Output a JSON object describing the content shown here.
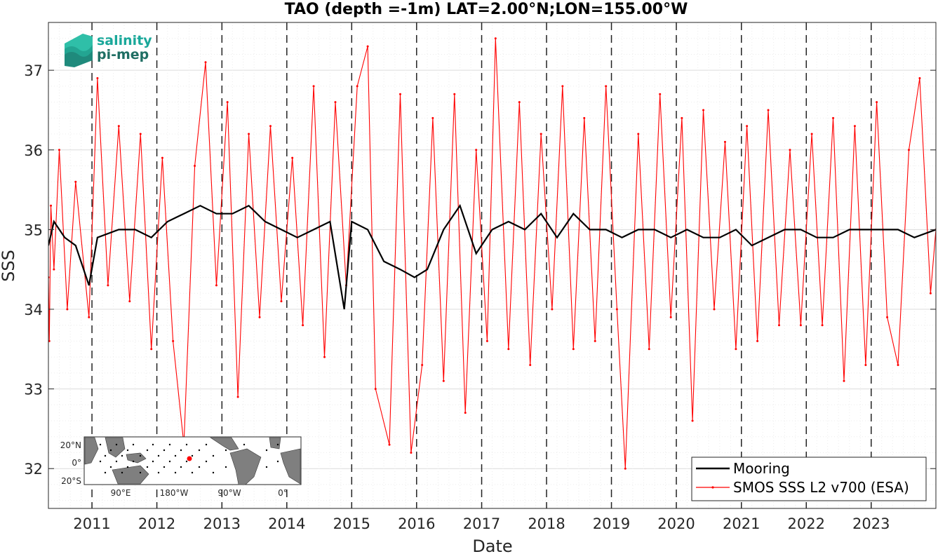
{
  "logo": {
    "line1": "salinity",
    "line2": "pi-mep",
    "color1": "#1aa89a",
    "color2": "#1f6e63"
  },
  "inset_map": {
    "lat_labels": [
      "20°N",
      "0°",
      "20°S"
    ],
    "lon_labels": [
      "90°E",
      "180°W",
      "90°W",
      "0°"
    ],
    "land_color": "#7f7f7f",
    "station_marker_color": "#ff0000"
  },
  "legend": {
    "position": "bottom-right"
  },
  "chart_data": {
    "type": "line",
    "title": "TAO (depth =-1m) LAT=2.00°N;LON=155.00°W",
    "xlabel": "Date",
    "ylabel": "SSS",
    "xlim": [
      "2010-05-01",
      "2023-12-31"
    ],
    "ylim": [
      31.5,
      37.6
    ],
    "x_ticks": [
      "2011",
      "2012",
      "2013",
      "2014",
      "2015",
      "2016",
      "2017",
      "2018",
      "2019",
      "2020",
      "2021",
      "2022",
      "2023"
    ],
    "y_ticks": [
      32,
      33,
      34,
      35,
      36,
      37
    ],
    "grid": true,
    "minor_grid": true,
    "year_boundary_lines": "dashed",
    "series": [
      {
        "name": "Mooring",
        "color": "#000000",
        "points": [
          [
            "2010-05-01",
            34.8
          ],
          [
            "2010-06-01",
            35.1
          ],
          [
            "2010-08-01",
            34.9
          ],
          [
            "2010-10-01",
            34.8
          ],
          [
            "2010-12-15",
            34.3
          ],
          [
            "2011-02-01",
            34.9
          ],
          [
            "2011-06-01",
            35.0
          ],
          [
            "2011-09-01",
            35.0
          ],
          [
            "2011-12-01",
            34.9
          ],
          [
            "2012-03-01",
            35.1
          ],
          [
            "2012-06-01",
            35.2
          ],
          [
            "2012-09-01",
            35.3
          ],
          [
            "2012-12-01",
            35.2
          ],
          [
            "2013-03-01",
            35.2
          ],
          [
            "2013-06-01",
            35.3
          ],
          [
            "2013-09-01",
            35.1
          ],
          [
            "2013-12-01",
            35.0
          ],
          [
            "2014-03-01",
            34.9
          ],
          [
            "2014-06-01",
            35.0
          ],
          [
            "2014-09-01",
            35.1
          ],
          [
            "2014-11-20",
            34.0
          ],
          [
            "2015-01-01",
            35.1
          ],
          [
            "2015-04-01",
            35.0
          ],
          [
            "2015-07-01",
            34.6
          ],
          [
            "2015-10-01",
            34.5
          ],
          [
            "2015-12-20",
            34.4
          ],
          [
            "2016-03-01",
            34.5
          ],
          [
            "2016-06-01",
            35.0
          ],
          [
            "2016-09-01",
            35.3
          ],
          [
            "2016-12-01",
            34.7
          ],
          [
            "2017-03-01",
            35.0
          ],
          [
            "2017-06-01",
            35.1
          ],
          [
            "2017-09-01",
            35.0
          ],
          [
            "2017-12-01",
            35.2
          ],
          [
            "2018-03-01",
            34.9
          ],
          [
            "2018-06-01",
            35.2
          ],
          [
            "2018-09-01",
            35.0
          ],
          [
            "2018-12-01",
            35.0
          ],
          [
            "2019-03-01",
            34.9
          ],
          [
            "2019-06-01",
            35.0
          ],
          [
            "2019-09-01",
            35.0
          ],
          [
            "2019-12-01",
            34.9
          ],
          [
            "2020-03-01",
            35.0
          ],
          [
            "2020-06-01",
            34.9
          ],
          [
            "2020-09-01",
            34.9
          ],
          [
            "2020-12-01",
            35.0
          ],
          [
            "2021-03-01",
            34.8
          ],
          [
            "2021-06-01",
            34.9
          ],
          [
            "2021-09-01",
            35.0
          ],
          [
            "2021-12-01",
            35.0
          ],
          [
            "2022-03-01",
            34.9
          ],
          [
            "2022-06-01",
            34.9
          ],
          [
            "2022-09-01",
            35.0
          ],
          [
            "2022-12-01",
            35.0
          ],
          [
            "2023-03-01",
            35.0
          ],
          [
            "2023-06-01",
            35.0
          ],
          [
            "2023-09-01",
            34.9
          ],
          [
            "2023-12-31",
            35.0
          ]
        ]
      },
      {
        "name": "SMOS SSS L2 v700 (ESA)",
        "color": "#ff0000",
        "points": [
          [
            "2010-05-01",
            34.4
          ],
          [
            "2010-05-06",
            33.6
          ],
          [
            "2010-05-15",
            35.3
          ],
          [
            "2010-06-01",
            34.5
          ],
          [
            "2010-07-01",
            36.0
          ],
          [
            "2010-08-15",
            34.0
          ],
          [
            "2010-10-01",
            35.6
          ],
          [
            "2010-12-15",
            33.9
          ],
          [
            "2011-02-01",
            36.9
          ],
          [
            "2011-04-01",
            34.3
          ],
          [
            "2011-06-01",
            36.3
          ],
          [
            "2011-08-01",
            34.1
          ],
          [
            "2011-10-01",
            36.2
          ],
          [
            "2011-12-01",
            33.5
          ],
          [
            "2012-02-01",
            35.9
          ],
          [
            "2012-04-01",
            33.6
          ],
          [
            "2012-06-01",
            32.3
          ],
          [
            "2012-08-01",
            35.8
          ],
          [
            "2012-10-01",
            37.1
          ],
          [
            "2012-12-01",
            34.3
          ],
          [
            "2013-02-01",
            36.6
          ],
          [
            "2013-04-01",
            32.9
          ],
          [
            "2013-06-01",
            36.2
          ],
          [
            "2013-08-01",
            33.9
          ],
          [
            "2013-10-01",
            36.3
          ],
          [
            "2013-12-01",
            34.1
          ],
          [
            "2014-02-01",
            35.9
          ],
          [
            "2014-04-01",
            33.8
          ],
          [
            "2014-06-01",
            36.8
          ],
          [
            "2014-08-01",
            33.4
          ],
          [
            "2014-10-01",
            36.6
          ],
          [
            "2014-12-01",
            34.3
          ],
          [
            "2015-02-01",
            36.8
          ],
          [
            "2015-04-01",
            37.3
          ],
          [
            "2015-05-15",
            33.0
          ],
          [
            "2015-08-01",
            32.3
          ],
          [
            "2015-10-01",
            36.7
          ],
          [
            "2015-12-01",
            32.2
          ],
          [
            "2016-02-01",
            33.3
          ],
          [
            "2016-04-01",
            36.4
          ],
          [
            "2016-06-01",
            33.1
          ],
          [
            "2016-08-01",
            36.7
          ],
          [
            "2016-10-01",
            32.7
          ],
          [
            "2016-12-01",
            36.0
          ],
          [
            "2017-02-01",
            33.6
          ],
          [
            "2017-03-20",
            37.4
          ],
          [
            "2017-06-01",
            33.5
          ],
          [
            "2017-08-01",
            36.6
          ],
          [
            "2017-10-01",
            33.3
          ],
          [
            "2017-12-01",
            36.2
          ],
          [
            "2018-02-01",
            34.0
          ],
          [
            "2018-04-01",
            36.8
          ],
          [
            "2018-06-01",
            33.5
          ],
          [
            "2018-08-01",
            36.4
          ],
          [
            "2018-10-01",
            33.6
          ],
          [
            "2018-12-01",
            36.8
          ],
          [
            "2019-02-01",
            34.0
          ],
          [
            "2019-03-20",
            32.0
          ],
          [
            "2019-06-01",
            36.2
          ],
          [
            "2019-08-01",
            33.5
          ],
          [
            "2019-10-01",
            36.7
          ],
          [
            "2019-12-01",
            33.9
          ],
          [
            "2020-02-01",
            36.4
          ],
          [
            "2020-04-01",
            32.6
          ],
          [
            "2020-06-01",
            36.5
          ],
          [
            "2020-08-01",
            34.0
          ],
          [
            "2020-10-01",
            36.1
          ],
          [
            "2020-12-01",
            33.5
          ],
          [
            "2021-02-01",
            36.3
          ],
          [
            "2021-04-01",
            33.6
          ],
          [
            "2021-06-01",
            36.5
          ],
          [
            "2021-08-01",
            33.8
          ],
          [
            "2021-10-01",
            36.0
          ],
          [
            "2021-12-01",
            33.8
          ],
          [
            "2022-02-01",
            36.2
          ],
          [
            "2022-04-01",
            33.8
          ],
          [
            "2022-06-01",
            36.4
          ],
          [
            "2022-08-01",
            33.1
          ],
          [
            "2022-10-01",
            36.3
          ],
          [
            "2022-12-01",
            33.3
          ],
          [
            "2023-02-01",
            36.6
          ],
          [
            "2023-04-01",
            33.9
          ],
          [
            "2023-06-01",
            33.3
          ],
          [
            "2023-08-01",
            36.0
          ],
          [
            "2023-10-01",
            36.9
          ],
          [
            "2023-12-01",
            34.2
          ],
          [
            "2023-12-31",
            35.0
          ]
        ]
      }
    ]
  }
}
